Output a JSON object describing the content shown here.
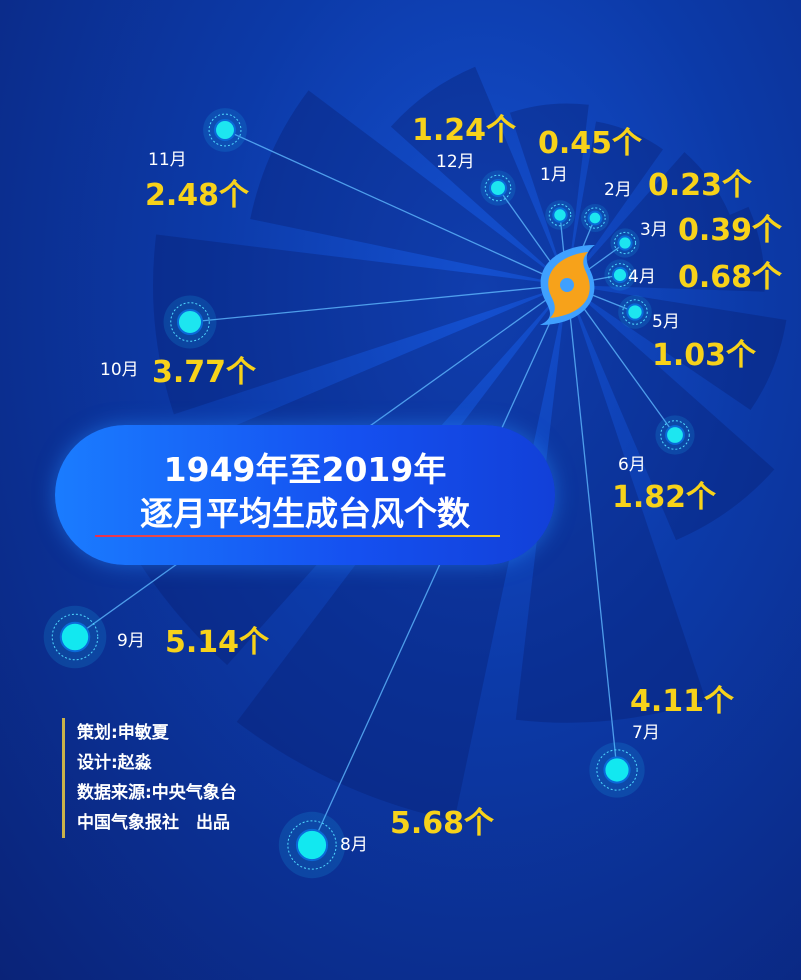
{
  "chart_data": {
    "type": "radial",
    "title_line1": "1949年至2019年",
    "title_line2": "逐月平均生成台风个数",
    "unit": "个",
    "categories": [
      "1月",
      "2月",
      "3月",
      "4月",
      "5月",
      "6月",
      "7月",
      "8月",
      "9月",
      "10月",
      "11月",
      "12月"
    ],
    "values": [
      0.45,
      0.23,
      0.39,
      0.68,
      1.03,
      1.82,
      4.11,
      5.68,
      5.14,
      3.77,
      2.48,
      1.24
    ],
    "value_labels": [
      "0.45个",
      "0.23个",
      "0.39个",
      "0.68个",
      "1.03个",
      "1.82个",
      "4.11个",
      "5.68个",
      "5.14个",
      "3.77个",
      "2.48个",
      "1.24个"
    ]
  },
  "icon": "typhoon-icon",
  "colors": {
    "value": "#f7d21a",
    "dot": "#1de6f0",
    "background": "#0c3aa8"
  },
  "credits": [
    "策划:申敏夏",
    "设计:赵淼",
    "数据来源:中央气象台",
    "中国气象报社　出品"
  ]
}
